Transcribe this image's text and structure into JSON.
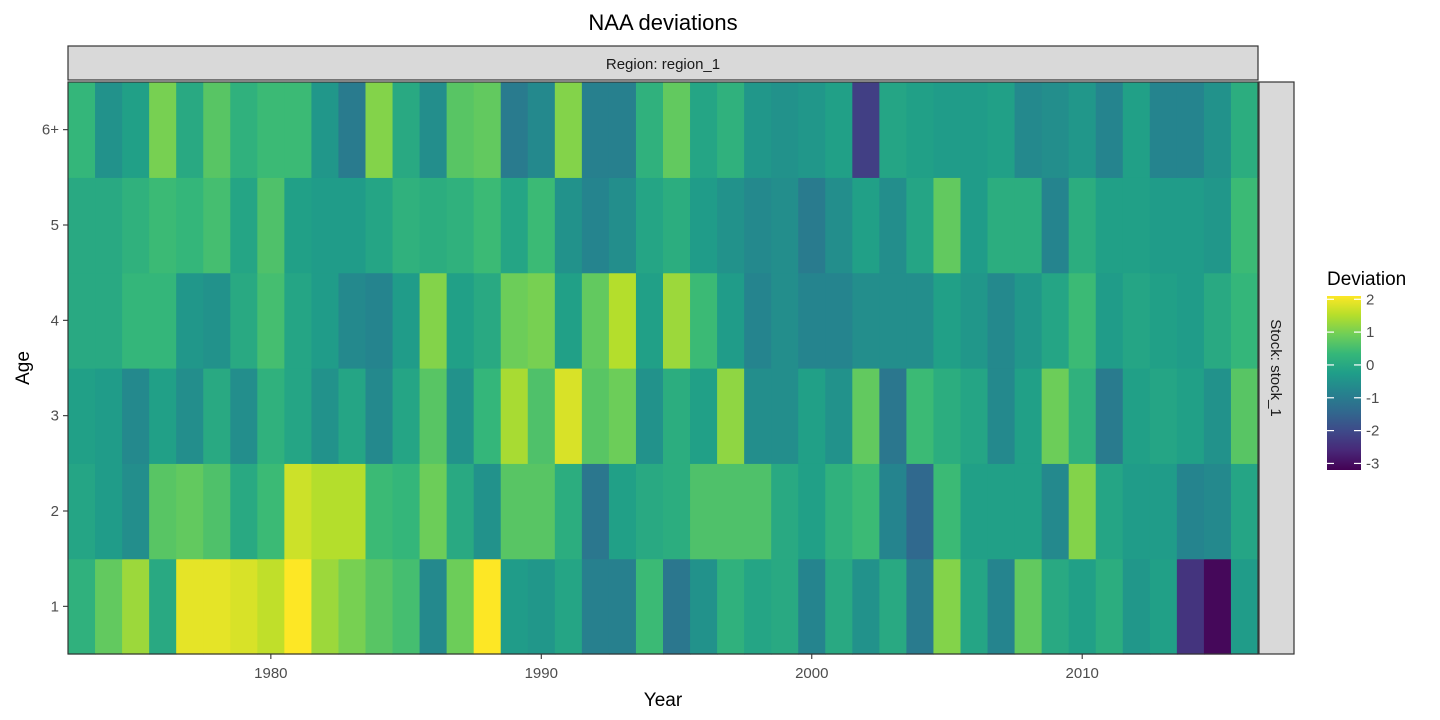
{
  "chart_data": {
    "type": "heatmap",
    "title": "NAA deviations",
    "xlabel": "Year",
    "ylabel": "Age",
    "facet_top": "Region: region_1",
    "facet_right": "Stock: stock_1",
    "x": [
      1973,
      1974,
      1975,
      1976,
      1977,
      1978,
      1979,
      1980,
      1981,
      1982,
      1983,
      1984,
      1985,
      1986,
      1987,
      1988,
      1989,
      1990,
      1991,
      1992,
      1993,
      1994,
      1995,
      1996,
      1997,
      1998,
      1999,
      2000,
      2001,
      2002,
      2003,
      2004,
      2005,
      2006,
      2007,
      2008,
      2009,
      2010,
      2011,
      2012,
      2013,
      2014,
      2015,
      2016
    ],
    "y_categories": [
      "1",
      "2",
      "3",
      "4",
      "5",
      "6+"
    ],
    "xlim": [
      1972.5,
      2016.5
    ],
    "x_ticks": [
      1980,
      1990,
      2000,
      2010
    ],
    "values": [
      [
        0.2,
        0.8,
        1.3,
        0.0,
        1.9,
        1.9,
        1.8,
        1.6,
        2.1,
        1.3,
        1.0,
        0.7,
        0.5,
        -0.7,
        0.9,
        2.1,
        -0.3,
        -0.4,
        -0.1,
        -0.9,
        -0.9,
        0.4,
        -1.1,
        -0.5,
        0.2,
        -0.1,
        0.0,
        -0.8,
        0.0,
        -0.5,
        0.0,
        -1.0,
        1.1,
        -0.1,
        -0.8,
        0.8,
        0.0,
        -0.2,
        0.1,
        -0.4,
        -0.2,
        -2.4,
        -3.1,
        -0.3
      ],
      [
        -0.1,
        -0.3,
        -0.6,
        0.7,
        0.8,
        0.6,
        0.0,
        0.4,
        1.7,
        1.5,
        1.5,
        0.4,
        0.3,
        0.9,
        0.0,
        -0.5,
        0.7,
        0.7,
        0.1,
        -1.1,
        -0.2,
        0.0,
        0.1,
        0.6,
        0.6,
        0.6,
        0.0,
        -0.2,
        0.2,
        0.4,
        -0.8,
        -1.4,
        0.4,
        -0.2,
        -0.2,
        -0.2,
        -0.7,
        1.1,
        -0.1,
        -0.3,
        -0.3,
        -0.8,
        -0.7,
        -0.1
      ],
      [
        -0.2,
        -0.3,
        -0.7,
        -0.2,
        -0.6,
        0.0,
        -0.6,
        0.2,
        -0.1,
        -0.5,
        -0.1,
        -0.7,
        -0.1,
        0.7,
        -0.5,
        0.3,
        1.4,
        0.6,
        1.8,
        0.7,
        0.9,
        -0.5,
        0.1,
        -0.2,
        1.2,
        -0.6,
        -0.6,
        -0.2,
        -0.5,
        0.8,
        -1.1,
        0.4,
        0.1,
        -0.1,
        -0.7,
        -0.2,
        0.9,
        0.2,
        -1.0,
        -0.2,
        -0.1,
        -0.2,
        -0.5,
        0.7
      ],
      [
        0.0,
        0.0,
        0.3,
        0.3,
        -0.4,
        -0.5,
        0.0,
        0.5,
        -0.1,
        -0.3,
        -0.7,
        -0.8,
        -0.3,
        1.1,
        -0.2,
        0.0,
        0.9,
        1.0,
        -0.2,
        0.8,
        1.5,
        -0.2,
        1.3,
        0.4,
        -0.3,
        -0.8,
        -0.6,
        -0.8,
        -0.8,
        -0.6,
        -0.6,
        -0.6,
        -0.2,
        -0.4,
        -0.7,
        -0.4,
        -0.1,
        0.4,
        -0.3,
        -0.1,
        -0.2,
        -0.3,
        0.0,
        0.3
      ],
      [
        0.0,
        0.0,
        0.2,
        0.4,
        0.3,
        0.5,
        -0.1,
        0.6,
        -0.2,
        -0.3,
        -0.3,
        -0.1,
        0.2,
        0.1,
        0.2,
        0.4,
        -0.1,
        0.4,
        -0.5,
        -0.8,
        -0.6,
        -0.1,
        0.1,
        -0.3,
        -0.5,
        -0.7,
        -0.6,
        -1.0,
        -0.6,
        -0.2,
        -0.6,
        -0.1,
        0.8,
        -0.3,
        0.1,
        0.1,
        -0.8,
        0.1,
        -0.2,
        -0.2,
        -0.3,
        -0.3,
        -0.4,
        0.4
      ],
      [
        0.3,
        -0.5,
        -0.2,
        1.0,
        0.0,
        0.7,
        0.2,
        0.4,
        0.4,
        -0.4,
        -1.0,
        1.1,
        0.0,
        -0.6,
        0.7,
        0.8,
        -1.0,
        -0.7,
        1.1,
        -0.9,
        -0.9,
        0.2,
        0.8,
        -0.1,
        0.2,
        -0.4,
        -0.5,
        -0.4,
        -0.2,
        -2.2,
        -0.1,
        -0.2,
        -0.3,
        -0.3,
        -0.2,
        -0.7,
        -0.6,
        -0.4,
        -0.8,
        -0.2,
        -0.8,
        -0.8,
        -0.5,
        0.1
      ]
    ],
    "colorbar": {
      "title": "Deviation",
      "min": -3.2,
      "max": 2.1,
      "ticks": [
        2,
        1,
        0,
        -1,
        -2,
        -3
      ],
      "tick_labels": [
        "2",
        "1",
        "0",
        "-1",
        "-2",
        "-3"
      ],
      "colormap": "viridis"
    },
    "grid": false,
    "legend_position": "right"
  },
  "colors": {
    "panel_border": "#333333",
    "strip_fill": "#d9d9d9",
    "viridis": [
      "#440154",
      "#482878",
      "#3e4989",
      "#31688e",
      "#26828e",
      "#1f9e89",
      "#35b779",
      "#6ece58",
      "#b5de2b",
      "#fde725"
    ]
  }
}
